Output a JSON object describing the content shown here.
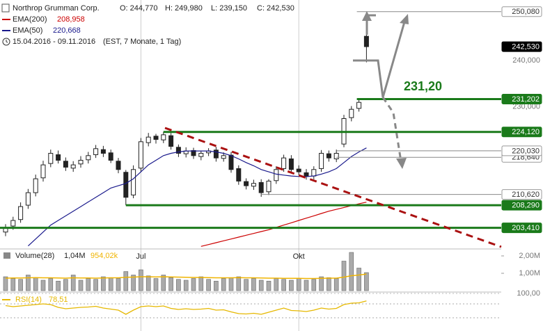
{
  "header": {
    "title": "Northrop Grumman Corp.",
    "ohlc": [
      "O: 244,770",
      "H: 249,980",
      "L: 239,150",
      "C: 242,530"
    ],
    "range": "15.04.2016 - 09.11.2016",
    "range_note": "(EST, 7 Monate, 1 Tag)"
  },
  "chart_data": [
    {
      "type": "candlestick",
      "categories": [
        null,
        null,
        null,
        null,
        null,
        null,
        null,
        null,
        null,
        null,
        null,
        null,
        null,
        null,
        null,
        null,
        null,
        null,
        "Jul",
        null,
        null,
        null,
        null,
        null,
        null,
        null,
        null,
        null,
        null,
        null,
        null,
        null,
        null,
        null,
        null,
        null,
        null,
        null,
        null,
        "Okt",
        null,
        null,
        null,
        null,
        null,
        null,
        null,
        null,
        null
      ],
      "open": [
        202.5,
        203.8,
        205.2,
        208.3,
        211,
        214.2,
        217.3,
        219.2,
        217.8,
        216.3,
        217.2,
        218.1,
        219.2,
        220.3,
        219.6,
        217.8,
        215.4,
        210.5,
        216.3,
        221.8,
        223.2,
        222.4,
        223.3,
        220.8,
        219.4,
        220.1,
        218.8,
        219.6,
        220.2,
        218.4,
        219.1,
        216.2,
        213.4,
        212.4,
        213.2,
        211.2,
        213.6,
        216.2,
        218.3,
        216.1,
        215.3,
        214.6,
        216.2,
        219.4,
        218.3,
        221.5,
        227.2,
        229.2,
        244.77
      ],
      "high": [
        204.2,
        205.8,
        208.9,
        211.8,
        214.9,
        217.9,
        220.3,
        220.1,
        218.6,
        217.8,
        218.9,
        219.8,
        221.3,
        221.1,
        220.3,
        218.5,
        215.9,
        216.9,
        222.8,
        223.9,
        223.7,
        224.12,
        223.9,
        221.4,
        220.8,
        220.7,
        220.1,
        220.6,
        220.9,
        219.7,
        219.8,
        216.9,
        214.1,
        213.8,
        213.9,
        213.9,
        216.7,
        219.2,
        219.1,
        216.9,
        216.1,
        216.7,
        220.2,
        220.1,
        220.3,
        227.8,
        229.7,
        231.2,
        249.98
      ],
      "low": [
        201.6,
        203,
        204.5,
        207.5,
        210.2,
        213.4,
        216.5,
        217.3,
        215.7,
        215.5,
        216.4,
        217.3,
        218.5,
        218.7,
        217.4,
        215.2,
        208.29,
        209.8,
        215.5,
        221,
        221.6,
        221.7,
        220.3,
        218.7,
        218.6,
        218.3,
        218,
        218.9,
        217.7,
        217.7,
        215.3,
        212.7,
        211.7,
        211.6,
        210.1,
        210.5,
        212.9,
        215.5,
        215.3,
        214.8,
        213.8,
        213.9,
        215.5,
        217.7,
        217.6,
        220.8,
        226.4,
        228.5,
        239.15
      ],
      "close": [
        203.5,
        205,
        208,
        211,
        214,
        217,
        219.5,
        218,
        216.5,
        217,
        218,
        219,
        220.5,
        219.5,
        218,
        216,
        210,
        216,
        222,
        223,
        222.5,
        223.5,
        221,
        219.5,
        220,
        219,
        219.5,
        220,
        218.5,
        219,
        216,
        213.5,
        212.5,
        213,
        211,
        213.5,
        216,
        218.5,
        216,
        215.5,
        214.5,
        216,
        219.5,
        218.5,
        219.5,
        227,
        229,
        230.5,
        242.53
      ],
      "up_color": "#ffffff",
      "down_color": "#222222",
      "ylim": [
        199.3,
        252.6
      ],
      "yticks": [
        {
          "value": 240,
          "label": "240,000"
        },
        {
          "value": 230,
          "label": "230,000"
        }
      ],
      "overlays": [
        {
          "name": "EMA(200)",
          "color": "#cc0000",
          "legend_value": "208,958",
          "values": [
            null,
            null,
            null,
            null,
            null,
            null,
            null,
            null,
            null,
            null,
            null,
            null,
            null,
            null,
            null,
            null,
            null,
            null,
            null,
            null,
            null,
            null,
            null,
            null,
            null,
            null,
            199.4,
            199.8,
            200.2,
            200.6,
            201,
            201.4,
            201.8,
            202.2,
            202.6,
            203,
            203.5,
            204,
            204.5,
            205,
            205.5,
            206,
            206.5,
            207,
            207.4,
            207.8,
            208.2,
            208.6,
            208.958
          ]
        },
        {
          "name": "EMA(50)",
          "color": "#1a1a8c",
          "legend_value": "220,668",
          "values": [
            null,
            null,
            null,
            199.5,
            201,
            202.5,
            204,
            205,
            206,
            207,
            208,
            209,
            210,
            211,
            212,
            212.5,
            213,
            214,
            215.5,
            217,
            218,
            219,
            219.5,
            219.8,
            220,
            220,
            220,
            220,
            219.8,
            219.5,
            219,
            218.3,
            217.5,
            216.8,
            216,
            215.5,
            215,
            214.8,
            214.6,
            214.5,
            214.5,
            214.6,
            215,
            215.5,
            216.2,
            217.5,
            218.8,
            219.8,
            220.668
          ]
        }
      ],
      "levels": [
        {
          "value": 250.08,
          "label": "250,080",
          "color": "#888888",
          "filled": false
        },
        {
          "value": 242.53,
          "label": "242,530",
          "color": "#000000",
          "filled": true
        },
        {
          "value": 231.202,
          "label": "231,202",
          "color": "#1a7a1a",
          "filled": true
        },
        {
          "value": 224.12,
          "label": "224,120",
          "color": "#1a7a1a",
          "filled": true
        },
        {
          "value": 218.64,
          "label": "218,640",
          "color": "#888888",
          "filled": false
        },
        {
          "value": 220.03,
          "label": "220,030",
          "color": "#888888",
          "filled": false
        },
        {
          "value": 210.62,
          "label": "210,620",
          "color": "#888888",
          "filled": false
        },
        {
          "value": 208.29,
          "label": "208,290",
          "color": "#1a7a1a",
          "filled": true
        },
        {
          "value": 203.41,
          "label": "203,410",
          "color": "#1a7a1a",
          "filled": true
        }
      ],
      "annotations": [
        "231,20"
      ]
    },
    {
      "type": "bar",
      "title": "Volume(28)",
      "color": "#aaaaaa",
      "legend_value": "1,04M",
      "values": [
        800000,
        700000,
        650000,
        900000,
        750000,
        600000,
        700000,
        550000,
        650000,
        900000,
        600000,
        700000,
        650000,
        800000,
        750000,
        700000,
        1100000,
        900000,
        1200000,
        850000,
        700000,
        900000,
        750000,
        650000,
        600000,
        700000,
        800000,
        650000,
        550000,
        700000,
        750000,
        800000,
        650000,
        700000,
        600000,
        550000,
        700000,
        650000,
        600000,
        700000,
        600000,
        650000,
        800000,
        750000,
        700000,
        1700000,
        2200000,
        1300000,
        1040000
      ],
      "average": {
        "color": "#f0b400",
        "legend_value": "954,02k",
        "values": [
          720000,
          730000,
          730000,
          740000,
          750000,
          740000,
          740000,
          730000,
          720000,
          740000,
          730000,
          730000,
          720000,
          730000,
          740000,
          740000,
          770000,
          780000,
          800000,
          800000,
          790000,
          800000,
          790000,
          780000,
          770000,
          760000,
          760000,
          750000,
          740000,
          740000,
          740000,
          750000,
          740000,
          740000,
          730000,
          720000,
          720000,
          710000,
          710000,
          710000,
          700000,
          700000,
          710000,
          720000,
          720000,
          780000,
          860000,
          900000,
          954020
        ]
      },
      "ylim": [
        0,
        2400000
      ],
      "yticks": [
        {
          "value": 2000000,
          "label": "2,00M"
        },
        {
          "value": 1000000,
          "label": "1,00M"
        }
      ]
    },
    {
      "type": "line",
      "title": "RSI(14)",
      "color": "#e6b800",
      "legend_value": "78,51",
      "values": [
        65,
        62,
        64,
        66,
        68,
        70,
        68,
        60,
        56,
        58,
        60,
        61,
        63,
        58,
        55,
        52,
        40,
        52,
        62,
        64,
        62,
        64,
        57,
        54,
        56,
        54,
        55,
        57,
        52,
        53,
        47,
        42,
        41,
        43,
        40,
        46,
        52,
        58,
        51,
        50,
        48,
        52,
        58,
        55,
        57,
        68,
        72,
        73,
        78.51
      ],
      "guides": [
        70,
        30
      ],
      "ylim": [
        0,
        100
      ],
      "yticks": [
        {
          "value": 100,
          "label": "100,00"
        }
      ]
    }
  ]
}
